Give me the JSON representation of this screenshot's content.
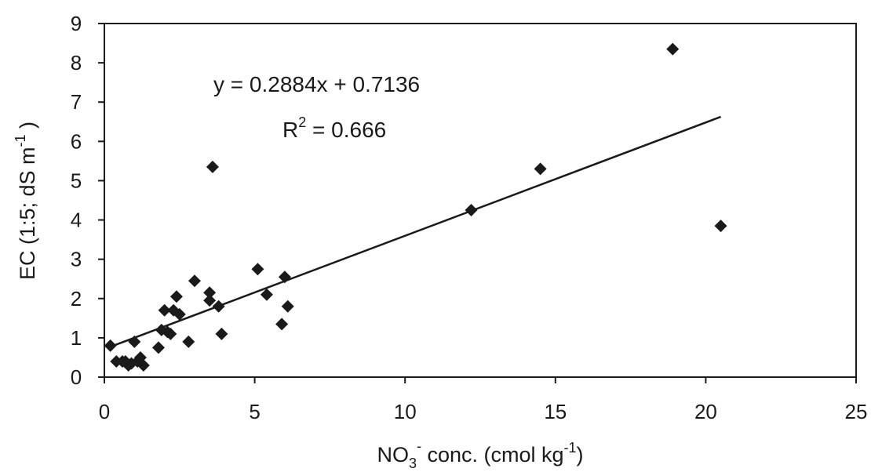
{
  "chart_data": {
    "type": "scatter",
    "title": "",
    "xlabel": {
      "prefix": "NO",
      "sub": "3",
      "sup": "-",
      "rest": " conc. (cmol kg",
      "unit_sup": "-1",
      "close": ")"
    },
    "ylabel": {
      "prefix": "EC (1:5; dS m",
      "sup": "-1",
      "close": " )"
    },
    "xlim": [
      0,
      25
    ],
    "ylim": [
      0,
      9
    ],
    "xticks": [
      0,
      5,
      10,
      15,
      20,
      25
    ],
    "yticks": [
      0,
      1,
      2,
      3,
      4,
      5,
      6,
      7,
      8,
      9
    ],
    "grid": false,
    "marker": "diamond",
    "marker_color": "#1a1a1a",
    "points": [
      {
        "x": 0.2,
        "y": 0.8
      },
      {
        "x": 0.4,
        "y": 0.4
      },
      {
        "x": 0.6,
        "y": 0.4
      },
      {
        "x": 0.7,
        "y": 0.4
      },
      {
        "x": 0.8,
        "y": 0.3
      },
      {
        "x": 0.9,
        "y": 0.35
      },
      {
        "x": 1.0,
        "y": 0.9
      },
      {
        "x": 1.1,
        "y": 0.4
      },
      {
        "x": 1.2,
        "y": 0.5
      },
      {
        "x": 1.3,
        "y": 0.3
      },
      {
        "x": 1.8,
        "y": 0.75
      },
      {
        "x": 1.9,
        "y": 1.2
      },
      {
        "x": 2.0,
        "y": 1.7
      },
      {
        "x": 2.1,
        "y": 1.15
      },
      {
        "x": 2.2,
        "y": 1.1
      },
      {
        "x": 2.3,
        "y": 1.7
      },
      {
        "x": 2.4,
        "y": 2.05
      },
      {
        "x": 2.5,
        "y": 1.6
      },
      {
        "x": 2.8,
        "y": 0.9
      },
      {
        "x": 3.0,
        "y": 2.45
      },
      {
        "x": 3.5,
        "y": 2.15
      },
      {
        "x": 3.5,
        "y": 1.95
      },
      {
        "x": 3.6,
        "y": 5.35
      },
      {
        "x": 3.8,
        "y": 1.8
      },
      {
        "x": 3.9,
        "y": 1.1
      },
      {
        "x": 5.1,
        "y": 2.75
      },
      {
        "x": 5.4,
        "y": 2.1
      },
      {
        "x": 5.9,
        "y": 1.35
      },
      {
        "x": 6.0,
        "y": 2.55
      },
      {
        "x": 6.1,
        "y": 1.8
      },
      {
        "x": 12.2,
        "y": 4.25
      },
      {
        "x": 14.5,
        "y": 5.3
      },
      {
        "x": 18.9,
        "y": 8.35
      },
      {
        "x": 20.5,
        "y": 3.85
      }
    ],
    "trendline": {
      "slope": 0.2884,
      "intercept": 0.7136,
      "x_range": [
        0.2,
        20.5
      ],
      "equation_text": "y = 0.2884x + 0.7136",
      "r2_prefix": "R",
      "r2_sup": "2",
      "r2_value": " = 0.666"
    }
  }
}
